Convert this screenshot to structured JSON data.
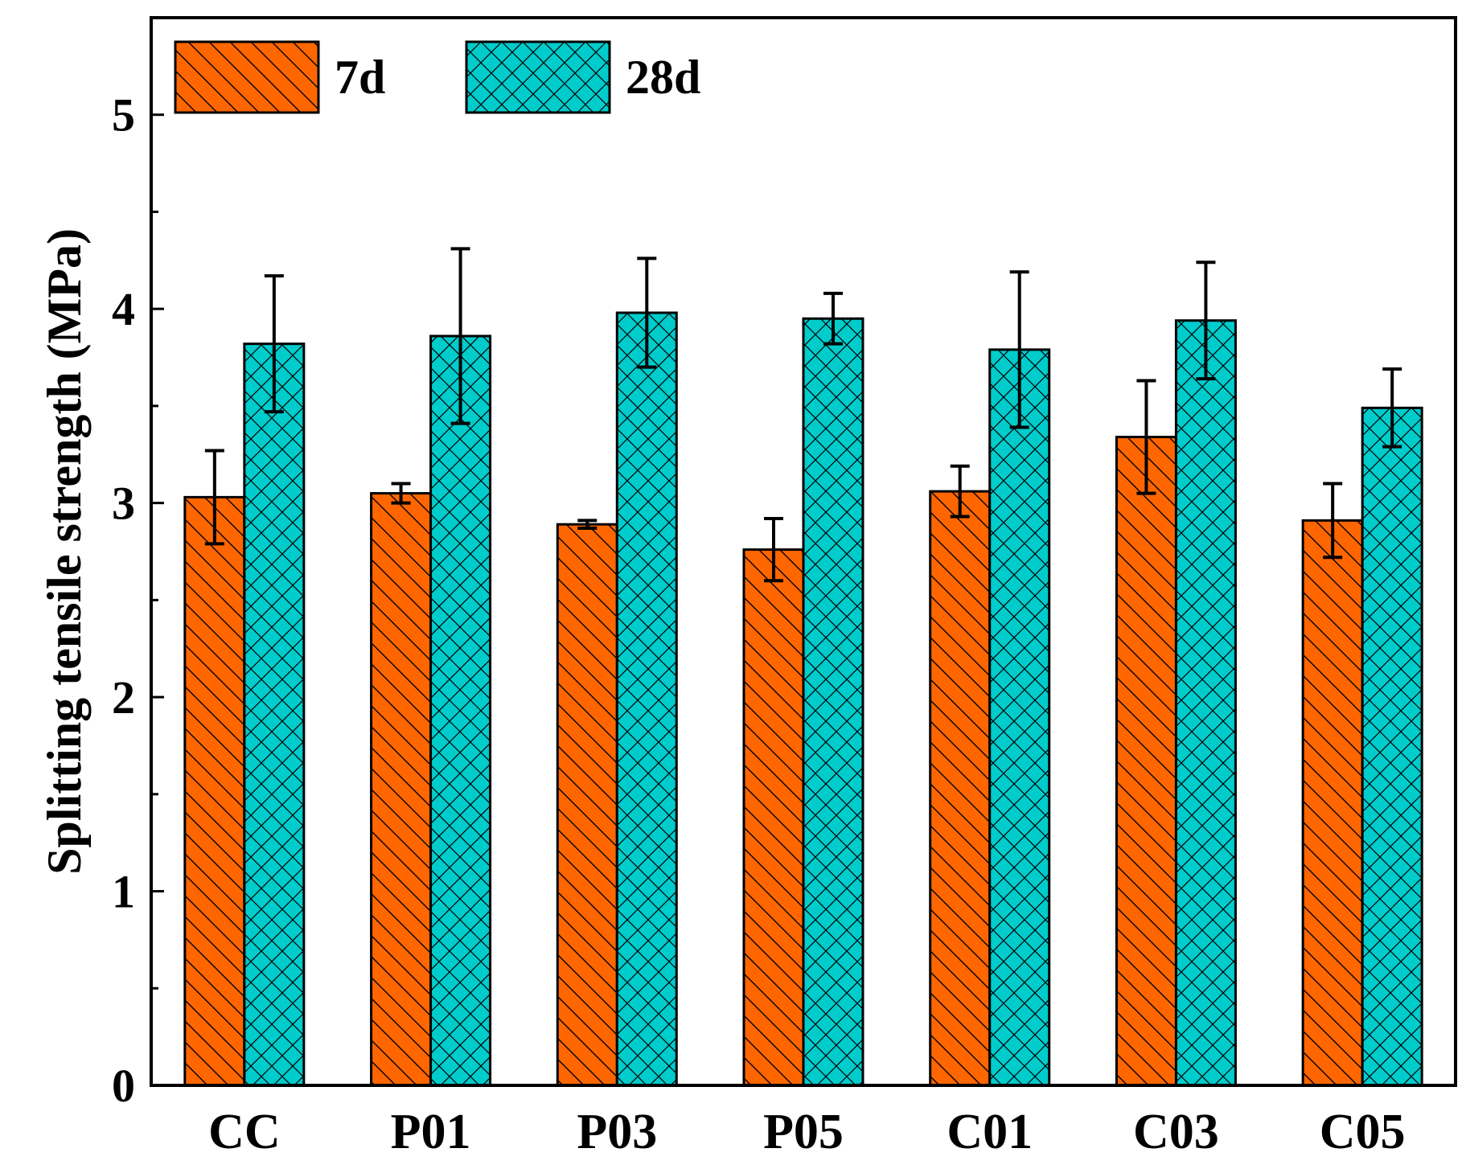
{
  "chart_data": {
    "type": "bar",
    "title": "",
    "xlabel": "",
    "ylabel": "Splitting tensile strength (MPa)",
    "ylim": [
      0,
      5.5
    ],
    "yticks": [
      0,
      1,
      2,
      3,
      4,
      5
    ],
    "categories": [
      "CC",
      "P01",
      "P03",
      "P05",
      "C01",
      "C03",
      "C05"
    ],
    "legend_position": "top-left",
    "series": [
      {
        "name": "7d",
        "color": "#ff6600",
        "pattern": "diagonal-hatch",
        "values": [
          3.03,
          3.05,
          2.89,
          2.76,
          3.06,
          3.34,
          2.91
        ],
        "errors": [
          0.24,
          0.05,
          0.02,
          0.16,
          0.13,
          0.29,
          0.19
        ]
      },
      {
        "name": "28d",
        "color": "#00cccc",
        "pattern": "cross-hatch",
        "values": [
          3.82,
          3.86,
          3.98,
          3.95,
          3.79,
          3.94,
          3.49
        ],
        "errors": [
          0.35,
          0.45,
          0.28,
          0.13,
          0.4,
          0.3,
          0.2
        ]
      }
    ]
  }
}
